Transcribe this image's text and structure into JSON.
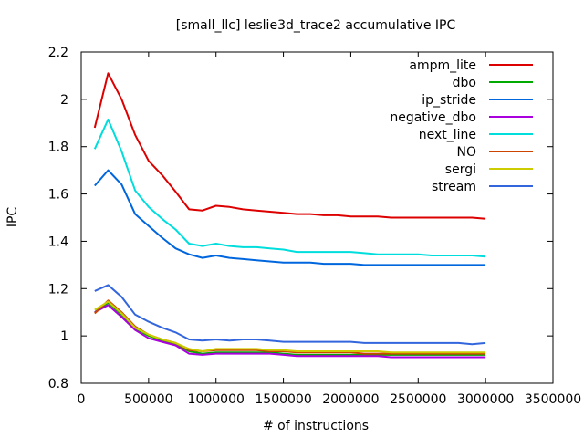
{
  "chart_data": {
    "type": "line",
    "title": "[small_llc] leslie3d_trace2 accumulative IPC",
    "xlabel": "# of instructions",
    "ylabel": "IPC",
    "xlim": [
      0,
      3500000
    ],
    "ylim": [
      0.8,
      2.2
    ],
    "x_ticks": [
      0,
      500000,
      1000000,
      1500000,
      2000000,
      2500000,
      3000000,
      3500000
    ],
    "y_ticks": [
      0.8,
      1,
      1.2,
      1.4,
      1.6,
      1.8,
      2,
      2.2
    ],
    "x_tick_labels": [
      "0",
      "500000",
      "1000000",
      "1500000",
      "2000000",
      "2500000",
      "3000000",
      "3500000"
    ],
    "y_tick_labels": [
      "0.8",
      "1",
      "1.2",
      "1.4",
      "1.6",
      "1.8",
      "2",
      "2.2"
    ],
    "grid": false,
    "legend_position": "top-right",
    "x": [
      100000,
      200000,
      300000,
      400000,
      500000,
      600000,
      700000,
      800000,
      900000,
      1000000,
      1100000,
      1200000,
      1300000,
      1400000,
      1500000,
      1600000,
      1700000,
      1800000,
      1900000,
      2000000,
      2100000,
      2200000,
      2300000,
      2400000,
      2500000,
      2600000,
      2700000,
      2800000,
      2900000,
      3000000
    ],
    "series": [
      {
        "name": "ampm_lite",
        "color": "#dd0000",
        "values": [
          1.88,
          2.11,
          2.0,
          1.85,
          1.74,
          1.68,
          1.61,
          1.535,
          1.53,
          1.55,
          1.545,
          1.535,
          1.53,
          1.525,
          1.52,
          1.515,
          1.515,
          1.51,
          1.51,
          1.505,
          1.505,
          1.505,
          1.5,
          1.5,
          1.5,
          1.5,
          1.5,
          1.5,
          1.5,
          1.495
        ]
      },
      {
        "name": "dbo",
        "color": "#00aa00",
        "values": [
          1.1,
          1.14,
          1.09,
          1.03,
          1.0,
          0.98,
          0.965,
          0.935,
          0.925,
          0.93,
          0.93,
          0.93,
          0.93,
          0.93,
          0.925,
          0.92,
          0.92,
          0.92,
          0.92,
          0.92,
          0.92,
          0.92,
          0.92,
          0.92,
          0.92,
          0.92,
          0.92,
          0.92,
          0.92,
          0.92
        ]
      },
      {
        "name": "ip_stride",
        "color": "#0066dd",
        "values": [
          1.635,
          1.7,
          1.64,
          1.515,
          1.465,
          1.415,
          1.37,
          1.345,
          1.33,
          1.34,
          1.33,
          1.325,
          1.32,
          1.315,
          1.31,
          1.31,
          1.31,
          1.305,
          1.305,
          1.305,
          1.3,
          1.3,
          1.3,
          1.3,
          1.3,
          1.3,
          1.3,
          1.3,
          1.3,
          1.3
        ]
      },
      {
        "name": "negative_dbo",
        "color": "#aa00dd",
        "values": [
          1.1,
          1.13,
          1.08,
          1.025,
          0.99,
          0.975,
          0.96,
          0.925,
          0.92,
          0.925,
          0.925,
          0.925,
          0.925,
          0.925,
          0.92,
          0.915,
          0.915,
          0.915,
          0.915,
          0.915,
          0.915,
          0.915,
          0.91,
          0.91,
          0.91,
          0.91,
          0.91,
          0.91,
          0.91,
          0.91
        ]
      },
      {
        "name": "next_line",
        "color": "#00dddd",
        "values": [
          1.79,
          1.915,
          1.78,
          1.615,
          1.545,
          1.495,
          1.45,
          1.39,
          1.38,
          1.39,
          1.38,
          1.375,
          1.375,
          1.37,
          1.365,
          1.355,
          1.355,
          1.355,
          1.355,
          1.355,
          1.35,
          1.345,
          1.345,
          1.345,
          1.345,
          1.34,
          1.34,
          1.34,
          1.34,
          1.335
        ]
      },
      {
        "name": "NO",
        "color": "#cc4400",
        "values": [
          1.095,
          1.15,
          1.1,
          1.04,
          1.005,
          0.985,
          0.97,
          0.94,
          0.935,
          0.94,
          0.94,
          0.94,
          0.94,
          0.935,
          0.935,
          0.93,
          0.93,
          0.93,
          0.93,
          0.93,
          0.925,
          0.925,
          0.925,
          0.925,
          0.925,
          0.925,
          0.925,
          0.925,
          0.925,
          0.925
        ]
      },
      {
        "name": "sergi",
        "color": "#cccc00",
        "values": [
          1.11,
          1.145,
          1.095,
          1.035,
          1.005,
          0.985,
          0.97,
          0.945,
          0.935,
          0.945,
          0.945,
          0.945,
          0.945,
          0.94,
          0.94,
          0.935,
          0.935,
          0.935,
          0.935,
          0.935,
          0.935,
          0.935,
          0.93,
          0.93,
          0.93,
          0.93,
          0.93,
          0.93,
          0.93,
          0.93
        ]
      },
      {
        "name": "stream",
        "color": "#3366dd",
        "values": [
          1.19,
          1.215,
          1.165,
          1.09,
          1.06,
          1.035,
          1.015,
          0.985,
          0.98,
          0.985,
          0.98,
          0.985,
          0.985,
          0.98,
          0.975,
          0.975,
          0.975,
          0.975,
          0.975,
          0.975,
          0.97,
          0.97,
          0.97,
          0.97,
          0.97,
          0.97,
          0.97,
          0.97,
          0.965,
          0.97
        ]
      }
    ]
  }
}
